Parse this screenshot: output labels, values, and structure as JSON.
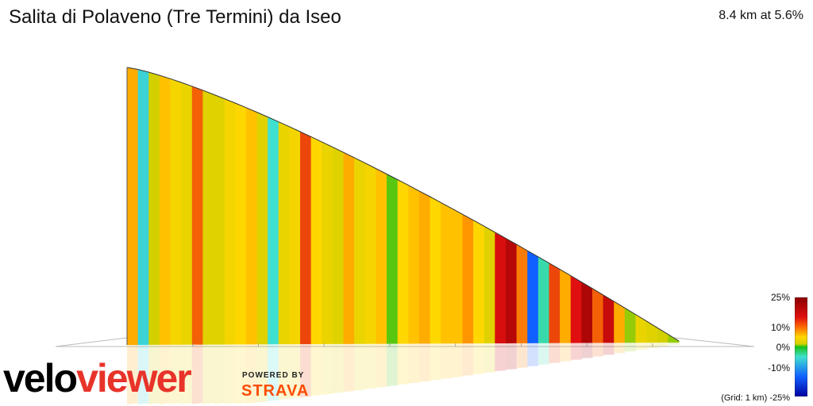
{
  "header": {
    "title": "Salita di Polaveno (Tre Termini) da Iseo",
    "summary": "8.4 km at 5.6%"
  },
  "branding": {
    "logo_part1": "velo",
    "logo_part2": "viewer",
    "powered_by": "POWERED BY",
    "strava": "STRAVA"
  },
  "legend": {
    "labels": [
      "25%",
      "10%",
      "0%",
      "-10%",
      "-25%"
    ],
    "grid_note": "(Grid: 1 km)"
  },
  "colors": {
    "logo_red": "#e8332a",
    "strava_orange": "#fc4c02",
    "legend_stops": [
      "#8b0000",
      "#e01010",
      "#ff6a00",
      "#ffd700",
      "#d4d000",
      "#18c218",
      "#40e0d0",
      "#1060ff",
      "#0000a0"
    ]
  },
  "chart_data": {
    "type": "area",
    "title": "Salita di Polaveno (Tre Termini) da Iseo",
    "xlabel": "",
    "ylabel": "",
    "distance_km": 8.4,
    "avg_gradient_pct": 5.6,
    "color_scale_pct": [
      -25,
      25
    ],
    "segments": [
      {
        "g": 9
      },
      {
        "g": -6
      },
      {
        "g": 3
      },
      {
        "g": 8
      },
      {
        "g": 6
      },
      {
        "g": 5
      },
      {
        "g": 12
      },
      {
        "g": 4
      },
      {
        "g": 4
      },
      {
        "g": 6
      },
      {
        "g": 7
      },
      {
        "g": 8
      },
      {
        "g": 4
      },
      {
        "g": -5
      },
      {
        "g": 5
      },
      {
        "g": 6
      },
      {
        "g": 13
      },
      {
        "g": 7
      },
      {
        "g": 5
      },
      {
        "g": 4
      },
      {
        "g": 9
      },
      {
        "g": 5
      },
      {
        "g": 6
      },
      {
        "g": 8
      },
      {
        "g": 1
      },
      {
        "g": 7
      },
      {
        "g": 8
      },
      {
        "g": 9
      },
      {
        "g": 7
      },
      {
        "g": 8
      },
      {
        "g": 8
      },
      {
        "g": 10
      },
      {
        "g": 7
      },
      {
        "g": 4
      },
      {
        "g": 16
      },
      {
        "g": 20
      },
      {
        "g": 11
      },
      {
        "g": -15
      },
      {
        "g": -4
      },
      {
        "g": 13
      },
      {
        "g": 9
      },
      {
        "g": 15
      },
      {
        "g": 21
      },
      {
        "g": 12
      },
      {
        "g": 18
      },
      {
        "g": 9
      },
      {
        "g": 2
      },
      {
        "g": 5
      },
      {
        "g": 4
      },
      {
        "g": 3
      },
      {
        "g": 2
      }
    ]
  }
}
